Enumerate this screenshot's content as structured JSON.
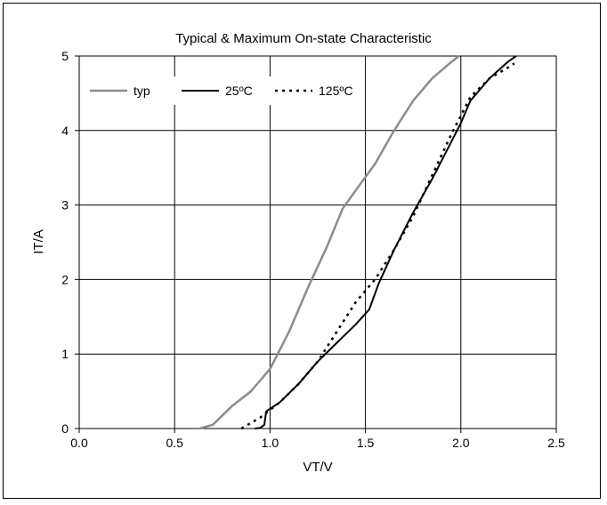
{
  "chart_data": {
    "type": "line",
    "title": "Typical & Maximum On-state Characteristic",
    "xlabel": "VT/V",
    "ylabel": "IT/A",
    "xlim": [
      0.0,
      2.5
    ],
    "ylim": [
      0,
      5
    ],
    "x_ticks": [
      "0.0",
      "0.5",
      "1.0",
      "1.5",
      "2.0",
      "2.5"
    ],
    "y_ticks": [
      "0",
      "1",
      "2",
      "3",
      "4",
      "5"
    ],
    "grid": true,
    "legend_position": "top-left",
    "series": [
      {
        "name": "typ",
        "color": "#8c8c8c",
        "style": "solid",
        "x": [
          0.63,
          0.7,
          0.8,
          0.9,
          1.0,
          1.1,
          1.2,
          1.3,
          1.38,
          1.45,
          1.55,
          1.65,
          1.75,
          1.85,
          1.95,
          1.99
        ],
        "y": [
          0.0,
          0.05,
          0.3,
          0.5,
          0.8,
          1.3,
          1.9,
          2.45,
          2.95,
          3.2,
          3.55,
          4.0,
          4.4,
          4.7,
          4.92,
          5.0
        ]
      },
      {
        "name": "25ºC",
        "color": "#000000",
        "style": "solid",
        "x": [
          0.92,
          0.95,
          0.97,
          0.98,
          1.05,
          1.15,
          1.25,
          1.35,
          1.45,
          1.52,
          1.57,
          1.65,
          1.75,
          1.85,
          1.95,
          2.0,
          2.05,
          2.15,
          2.25,
          2.29
        ],
        "y": [
          0.0,
          0.01,
          0.05,
          0.23,
          0.35,
          0.6,
          0.9,
          1.15,
          1.4,
          1.6,
          1.95,
          2.4,
          2.9,
          3.35,
          3.85,
          4.1,
          4.4,
          4.7,
          4.93,
          5.0
        ]
      },
      {
        "name": "125ºC",
        "color": "#000000",
        "style": "dotted",
        "x": [
          0.85,
          0.95,
          1.05,
          1.15,
          1.25,
          1.35,
          1.45,
          1.55,
          1.65,
          1.75,
          1.85,
          1.95,
          2.05,
          2.15,
          2.25,
          2.28
        ],
        "y": [
          0.0,
          0.15,
          0.35,
          0.6,
          0.9,
          1.3,
          1.7,
          2.0,
          2.4,
          2.85,
          3.4,
          3.95,
          4.45,
          4.7,
          4.85,
          4.9
        ]
      }
    ]
  }
}
